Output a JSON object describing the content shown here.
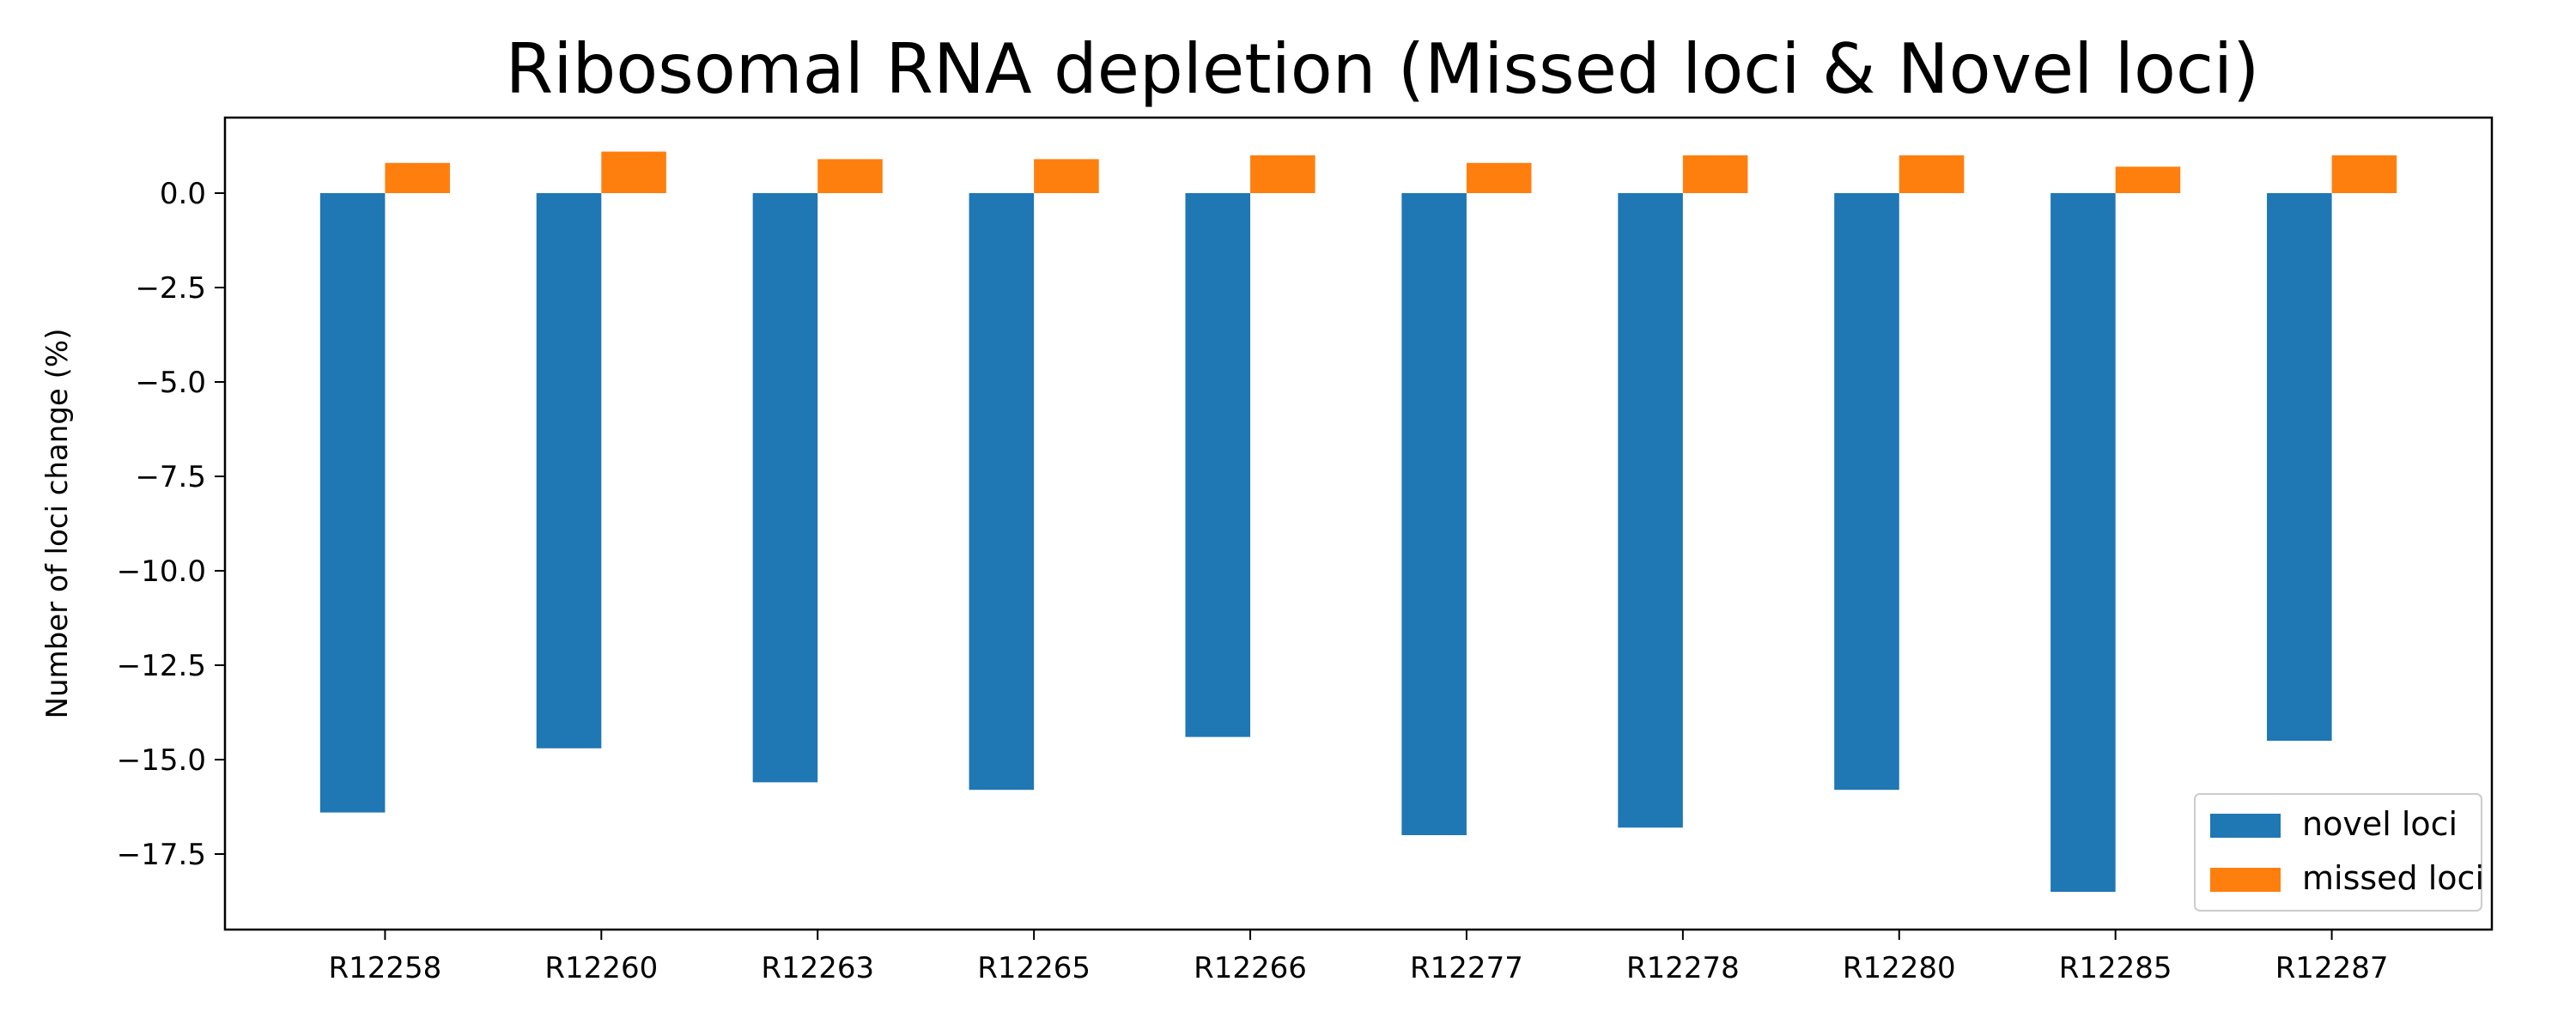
{
  "chart_data": {
    "type": "bar",
    "title": "Ribosomal RNA depletion (Missed loci & Novel loci)",
    "xlabel": "",
    "ylabel": "Number of loci change (%)",
    "ylim": [
      -19.5,
      2.0
    ],
    "yticks": [
      0.0,
      -2.5,
      -5.0,
      -7.5,
      -10.0,
      -12.5,
      -15.0,
      -17.5
    ],
    "ytick_labels": [
      "0.0",
      "−2.5",
      "−5.0",
      "−7.5",
      "−10.0",
      "−12.5",
      "−15.0",
      "−17.5"
    ],
    "categories": [
      "R12258",
      "R12260",
      "R12263",
      "R12265",
      "R12266",
      "R12277",
      "R12278",
      "R12280",
      "R12285",
      "R12287"
    ],
    "series": [
      {
        "name": "novel loci",
        "color": "#1f77b4",
        "values": [
          -16.4,
          -14.7,
          -15.6,
          -15.8,
          -14.4,
          -17.0,
          -16.8,
          -15.8,
          -18.5,
          -14.5
        ]
      },
      {
        "name": "missed loci",
        "color": "#ff7f0e",
        "values": [
          0.8,
          1.1,
          0.9,
          0.9,
          1.0,
          0.8,
          1.0,
          1.0,
          0.7,
          1.0
        ]
      }
    ],
    "grid": false,
    "legend_position": "bottom-right"
  }
}
